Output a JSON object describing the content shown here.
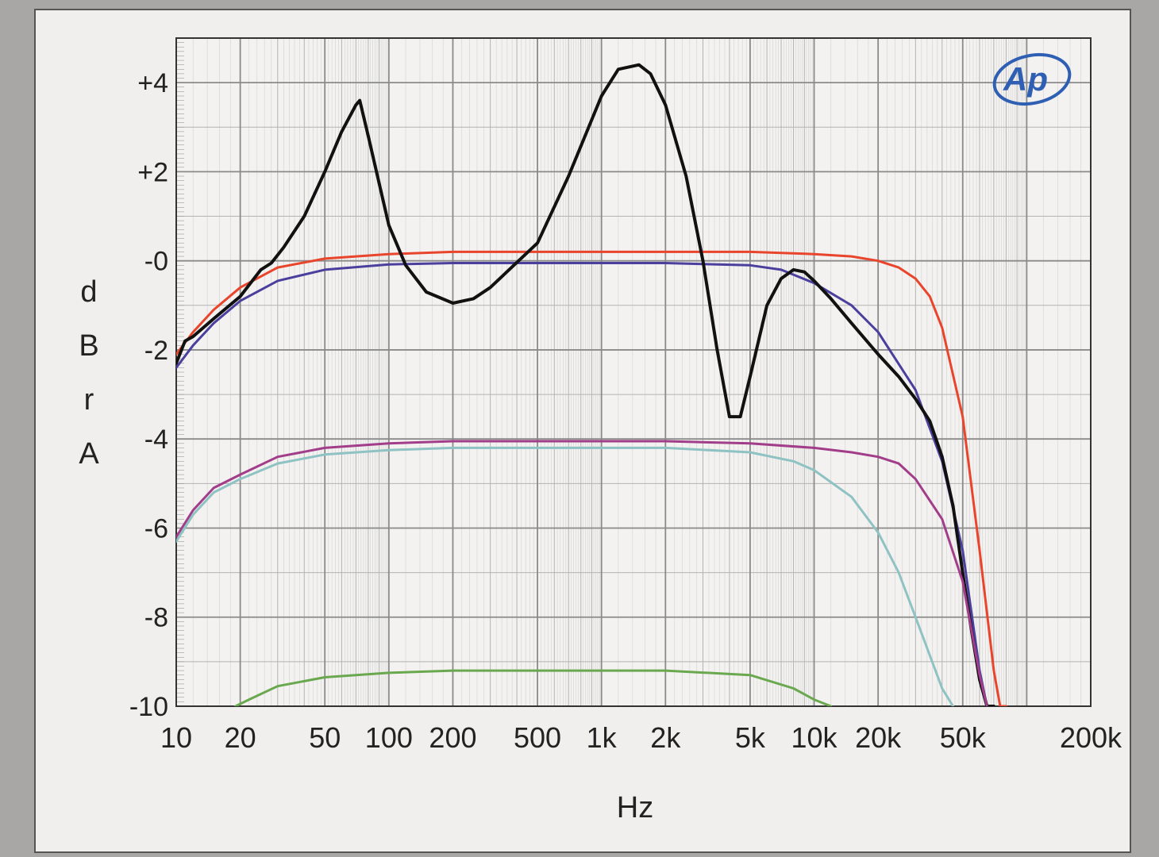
{
  "chart_data": {
    "type": "line",
    "xscale": "log",
    "xlabel": "Hz",
    "ylabel": "dBrA",
    "xlim": [
      10,
      200000
    ],
    "ylim": [
      -10,
      5
    ],
    "x_ticks": [
      {
        "value": 10,
        "label": "10"
      },
      {
        "value": 20,
        "label": "20"
      },
      {
        "value": 50,
        "label": "50"
      },
      {
        "value": 100,
        "label": "100"
      },
      {
        "value": 200,
        "label": "200"
      },
      {
        "value": 500,
        "label": "500"
      },
      {
        "value": 1000,
        "label": "1k"
      },
      {
        "value": 2000,
        "label": "2k"
      },
      {
        "value": 5000,
        "label": "5k"
      },
      {
        "value": 10000,
        "label": "10k"
      },
      {
        "value": 20000,
        "label": "20k"
      },
      {
        "value": 50000,
        "label": "50k"
      },
      {
        "value": 200000,
        "label": "200k"
      }
    ],
    "y_ticks": [
      {
        "value": 4,
        "label": "+4"
      },
      {
        "value": 2,
        "label": "+2"
      },
      {
        "value": 0,
        "label": "-0"
      },
      {
        "value": -2,
        "label": "-2"
      },
      {
        "value": -4,
        "label": "-4"
      },
      {
        "value": -6,
        "label": "-6"
      },
      {
        "value": -8,
        "label": "-8"
      },
      {
        "value": -10,
        "label": "-10"
      }
    ],
    "grid": true,
    "logo": "Ap",
    "series": [
      {
        "color": "#e8452c",
        "x": [
          10,
          12,
          15,
          20,
          30,
          50,
          100,
          200,
          500,
          1000,
          2000,
          5000,
          10000,
          15000,
          20000,
          25000,
          30000,
          35000,
          40000,
          50000,
          60000,
          70000,
          75000,
          80000
        ],
        "y": [
          -2.1,
          -1.6,
          -1.1,
          -0.6,
          -0.15,
          0.05,
          0.15,
          0.2,
          0.2,
          0.2,
          0.2,
          0.2,
          0.15,
          0.1,
          0.0,
          -0.15,
          -0.4,
          -0.8,
          -1.5,
          -3.5,
          -6.5,
          -9.2,
          -10,
          -10
        ]
      },
      {
        "color": "#4b3f9e",
        "x": [
          10,
          12,
          15,
          20,
          30,
          50,
          100,
          200,
          500,
          1000,
          2000,
          5000,
          7000,
          10000,
          15000,
          20000,
          30000,
          40000,
          50000,
          60000,
          65000
        ],
        "y": [
          -2.4,
          -1.9,
          -1.4,
          -0.9,
          -0.45,
          -0.2,
          -0.08,
          -0.05,
          -0.05,
          -0.05,
          -0.05,
          -0.1,
          -0.2,
          -0.5,
          -1.0,
          -1.6,
          -2.9,
          -4.5,
          -6.5,
          -9.2,
          -10
        ]
      },
      {
        "color": "#111111",
        "x": [
          10,
          11,
          12,
          15,
          20,
          25,
          28,
          32,
          40,
          50,
          60,
          70,
          73,
          80,
          100,
          120,
          150,
          200,
          250,
          300,
          500,
          700,
          1000,
          1200,
          1500,
          1700,
          2000,
          2500,
          3000,
          3500,
          4000,
          4500,
          5000,
          6000,
          7000,
          8000,
          9000,
          10000,
          12000,
          15000,
          20000,
          25000,
          30000,
          35000,
          40000,
          45000,
          50000,
          55000,
          60000,
          65000,
          70000
        ],
        "y": [
          -2.3,
          -1.8,
          -1.7,
          -1.3,
          -0.8,
          -0.2,
          -0.05,
          0.3,
          1.0,
          2.0,
          2.9,
          3.5,
          3.6,
          2.8,
          0.8,
          -0.1,
          -0.7,
          -0.95,
          -0.85,
          -0.6,
          0.4,
          1.9,
          3.7,
          4.3,
          4.4,
          4.2,
          3.5,
          1.9,
          0.0,
          -2.0,
          -3.5,
          -3.5,
          -2.6,
          -1.0,
          -0.4,
          -0.2,
          -0.25,
          -0.45,
          -0.85,
          -1.4,
          -2.1,
          -2.6,
          -3.1,
          -3.6,
          -4.4,
          -5.5,
          -7.0,
          -8.3,
          -9.4,
          -10,
          -10
        ]
      },
      {
        "color": "#a23d8a",
        "x": [
          10,
          12,
          15,
          20,
          30,
          50,
          100,
          200,
          500,
          1000,
          2000,
          5000,
          10000,
          15000,
          20000,
          25000,
          30000,
          40000,
          50000,
          60000,
          65000
        ],
        "y": [
          -6.2,
          -5.6,
          -5.1,
          -4.8,
          -4.4,
          -4.2,
          -4.1,
          -4.05,
          -4.05,
          -4.05,
          -4.05,
          -4.1,
          -4.2,
          -4.3,
          -4.4,
          -4.55,
          -4.9,
          -5.8,
          -7.2,
          -9.3,
          -10
        ]
      },
      {
        "color": "#8fc3c3",
        "x": [
          10,
          12,
          15,
          20,
          30,
          50,
          100,
          200,
          500,
          1000,
          2000,
          5000,
          8000,
          10000,
          15000,
          20000,
          25000,
          30000,
          40000,
          45000
        ],
        "y": [
          -6.3,
          -5.7,
          -5.2,
          -4.9,
          -4.55,
          -4.35,
          -4.25,
          -4.2,
          -4.2,
          -4.2,
          -4.2,
          -4.3,
          -4.5,
          -4.7,
          -5.3,
          -6.1,
          -7.0,
          -8.0,
          -9.6,
          -10
        ]
      },
      {
        "color": "#6aa84f",
        "x": [
          19,
          22,
          30,
          50,
          100,
          200,
          500,
          1000,
          2000,
          5000,
          8000,
          10000,
          12000
        ],
        "y": [
          -10,
          -9.85,
          -9.55,
          -9.35,
          -9.25,
          -9.2,
          -9.2,
          -9.2,
          -9.2,
          -9.3,
          -9.6,
          -9.85,
          -10
        ]
      }
    ]
  }
}
